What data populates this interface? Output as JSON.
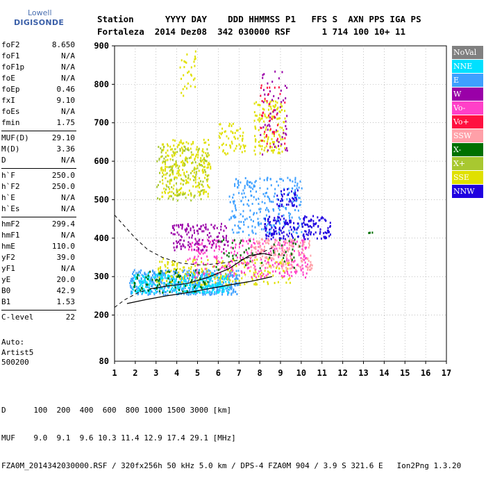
{
  "logo": {
    "line1": "Lowell",
    "line2": "DIGISONDE"
  },
  "header": {
    "line1": "Station      YYYY DAY    DDD HHMMSS P1   FFS S  AXN PPS IGA PS",
    "line2": "Fortaleza  2014 Dez08  342 030000 RSF      1 714 100 10+ 11"
  },
  "params_groups": [
    [
      {
        "k": "foF2",
        "v": "8.650"
      },
      {
        "k": "foF1",
        "v": "N/A"
      },
      {
        "k": "foF1p",
        "v": "N/A"
      },
      {
        "k": "foE",
        "v": "N/A"
      },
      {
        "k": "foEp",
        "v": "0.46"
      },
      {
        "k": "fxI",
        "v": "9.10"
      },
      {
        "k": "foEs",
        "v": "N/A"
      },
      {
        "k": "fmin",
        "v": "1.75"
      }
    ],
    [
      {
        "k": "MUF(D)",
        "v": "29.10"
      },
      {
        "k": "M(D)",
        "v": "3.36"
      },
      {
        "k": "D",
        "v": "N/A"
      }
    ],
    [
      {
        "k": "h`F",
        "v": "250.0"
      },
      {
        "k": "h`F2",
        "v": "250.0"
      },
      {
        "k": "h`E",
        "v": "N/A"
      },
      {
        "k": "h`Es",
        "v": "N/A"
      }
    ],
    [
      {
        "k": "hmF2",
        "v": "299.4"
      },
      {
        "k": "hmF1",
        "v": "N/A"
      },
      {
        "k": "hmE",
        "v": "110.0"
      },
      {
        "k": "yF2",
        "v": "39.0"
      },
      {
        "k": "yF1",
        "v": "N/A"
      },
      {
        "k": "yE",
        "v": "20.0"
      },
      {
        "k": "B0",
        "v": "42.9"
      },
      {
        "k": "B1",
        "v": "1.53"
      }
    ],
    [
      {
        "k": "C-level",
        "v": "22"
      }
    ]
  ],
  "auto": {
    "l1": "Auto:",
    "l2": "Artist5",
    "l3": "500200"
  },
  "legend": [
    {
      "label": "NoVal",
      "color": "#808080"
    },
    {
      "label": "NNE",
      "color": "#00e0ff"
    },
    {
      "label": "E",
      "color": "#3ea0ff"
    },
    {
      "label": "W",
      "color": "#9a00a8"
    },
    {
      "label": "Vo-",
      "color": "#ff40c8"
    },
    {
      "label": "Vo+",
      "color": "#ff1040"
    },
    {
      "label": "SSW",
      "color": "#ffa0a8"
    },
    {
      "label": "X-",
      "color": "#007000"
    },
    {
      "label": "X+",
      "color": "#a8c830"
    },
    {
      "label": "SSE",
      "color": "#e0e000"
    },
    {
      "label": "NNW",
      "color": "#2000e0"
    }
  ],
  "footer": {
    "d_line": "D      100  200  400  600  800 1000 1500 3000 [km]",
    "muf_line": "MUF    9.0  9.1  9.6 10.3 11.4 12.9 17.4 29.1 [MHz]",
    "file_line": "FZA0M_2014342030000.RSF / 320fx256h 50 kHz 5.0 km / DPS-4 FZA0M 904 / 3.9 S 321.6 E   Ion2Png 1.3.20"
  },
  "chart_data": {
    "type": "scatter",
    "xlim": [
      1,
      17
    ],
    "ylim": [
      80,
      900
    ],
    "x_ticks": [
      "1",
      "2",
      "3",
      "4",
      "5",
      "6",
      "7",
      "8",
      "9",
      "10",
      "11",
      "12",
      "13",
      "14",
      "15",
      "16",
      "17"
    ],
    "y_ticks": [
      "200",
      "300",
      "400",
      "500",
      "600",
      "700",
      "800",
      "900"
    ],
    "y_bottom_label": "80",
    "grid": true,
    "legend_position": "right",
    "clusters": [
      {
        "color": "#3ea0ff",
        "fx": [
          1.7,
          7.0
        ],
        "h": [
          255,
          320
        ],
        "n": 500
      },
      {
        "color": "#00e0ff",
        "fx": [
          1.8,
          6.5
        ],
        "h": [
          260,
          310
        ],
        "n": 300
      },
      {
        "color": "#e0e000",
        "fx": [
          3.0,
          9.5
        ],
        "h": [
          280,
          350
        ],
        "n": 220
      },
      {
        "color": "#ff40c8",
        "fx": [
          4.5,
          10.3
        ],
        "h": [
          300,
          400
        ],
        "n": 300
      },
      {
        "color": "#ffa0a8",
        "fx": [
          7.5,
          10.5
        ],
        "h": [
          320,
          400
        ],
        "n": 160
      },
      {
        "color": "#9a00a8",
        "fx": [
          3.7,
          6.5
        ],
        "h": [
          370,
          440
        ],
        "n": 140
      },
      {
        "color": "#3ea0ff",
        "fx": [
          6.5,
          10.0
        ],
        "h": [
          410,
          560
        ],
        "n": 260
      },
      {
        "color": "#2000e0",
        "fx": [
          8.2,
          11.4
        ],
        "h": [
          400,
          460
        ],
        "n": 180
      },
      {
        "color": "#2000e0",
        "fx": [
          8.8,
          9.8
        ],
        "h": [
          480,
          530
        ],
        "n": 40
      },
      {
        "color": "#e0e000",
        "fx": [
          3.2,
          5.6
        ],
        "h": [
          510,
          660
        ],
        "n": 260
      },
      {
        "color": "#a8c830",
        "fx": [
          3.0,
          5.5
        ],
        "h": [
          500,
          640
        ],
        "n": 120
      },
      {
        "color": "#e0e000",
        "fx": [
          6.0,
          7.3
        ],
        "h": [
          620,
          700
        ],
        "n": 60
      },
      {
        "color": "#e0e000",
        "fx": [
          7.7,
          9.2
        ],
        "h": [
          620,
          760
        ],
        "n": 140
      },
      {
        "color": "#9a00a8",
        "fx": [
          8.0,
          9.3
        ],
        "h": [
          620,
          840
        ],
        "n": 60
      },
      {
        "color": "#ff1040",
        "fx": [
          8.0,
          9.2
        ],
        "h": [
          640,
          800
        ],
        "n": 40
      },
      {
        "color": "#007000",
        "fx": [
          1.9,
          5.5
        ],
        "h": [
          260,
          320
        ],
        "n": 70
      },
      {
        "color": "#007000",
        "fx": [
          5.5,
          10.0
        ],
        "h": [
          320,
          400
        ],
        "n": 50
      },
      {
        "color": "#e0e000",
        "fx": [
          4.0,
          4.9
        ],
        "h": [
          770,
          890
        ],
        "n": 30
      },
      {
        "color": "#007000",
        "fx": [
          13.2,
          13.5
        ],
        "h": [
          415,
          420
        ],
        "n": 3
      }
    ],
    "dashed_curve": [
      [
        1.0,
        460
      ],
      [
        1.5,
        430
      ],
      [
        2.0,
        400
      ],
      [
        2.6,
        370
      ],
      [
        3.3,
        350
      ],
      [
        4.2,
        335
      ],
      [
        5.2,
        330
      ],
      [
        6.2,
        335
      ],
      [
        7.2,
        345
      ],
      [
        8.0,
        360
      ],
      [
        8.6,
        375
      ]
    ],
    "dashed_lower": [
      [
        1.0,
        220
      ],
      [
        1.5,
        240
      ],
      [
        2.2,
        260
      ],
      [
        3.0,
        270
      ]
    ],
    "solid_curve1": [
      [
        2.7,
        268
      ],
      [
        3.5,
        275
      ],
      [
        4.5,
        282
      ],
      [
        5.5,
        298
      ],
      [
        6.5,
        320
      ],
      [
        7.0,
        338
      ],
      [
        7.5,
        355
      ],
      [
        8.2,
        360
      ],
      [
        8.6,
        355
      ]
    ],
    "solid_curve2": [
      [
        1.6,
        230
      ],
      [
        2.5,
        240
      ],
      [
        3.5,
        250
      ],
      [
        4.5,
        258
      ],
      [
        5.5,
        268
      ],
      [
        6.5,
        278
      ],
      [
        7.5,
        287
      ],
      [
        8.2,
        295
      ],
      [
        8.6,
        300
      ],
      [
        8.4,
        298
      ]
    ]
  }
}
